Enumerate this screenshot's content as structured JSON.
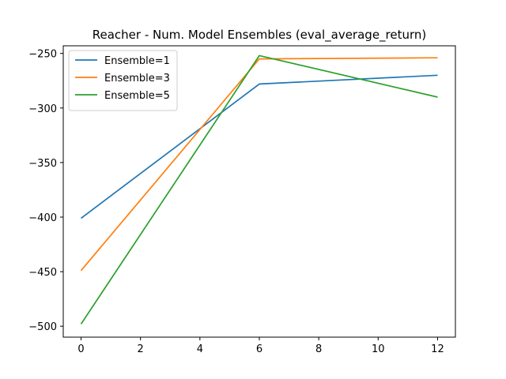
{
  "chart_data": {
    "type": "line",
    "title": "Reacher - Num. Model Ensembles (eval_average_return)",
    "xlabel": "",
    "ylabel": "",
    "xlim": [
      -0.6,
      12.6
    ],
    "ylim": [
      -510,
      -243
    ],
    "xticks": [
      0,
      2,
      4,
      6,
      8,
      10,
      12
    ],
    "yticks": [
      -500,
      -450,
      -400,
      -350,
      -300,
      -250
    ],
    "grid": false,
    "legend": "upper-left",
    "x": [
      0,
      6,
      12
    ],
    "series": [
      {
        "name": "Ensemble=1",
        "color": "#1f77b4",
        "values": [
          -401,
          -278,
          -270
        ]
      },
      {
        "name": "Ensemble=3",
        "color": "#ff7f0e",
        "values": [
          -449,
          -255,
          -254
        ]
      },
      {
        "name": "Ensemble=5",
        "color": "#2ca02c",
        "values": [
          -498,
          -252,
          -290
        ]
      }
    ]
  }
}
